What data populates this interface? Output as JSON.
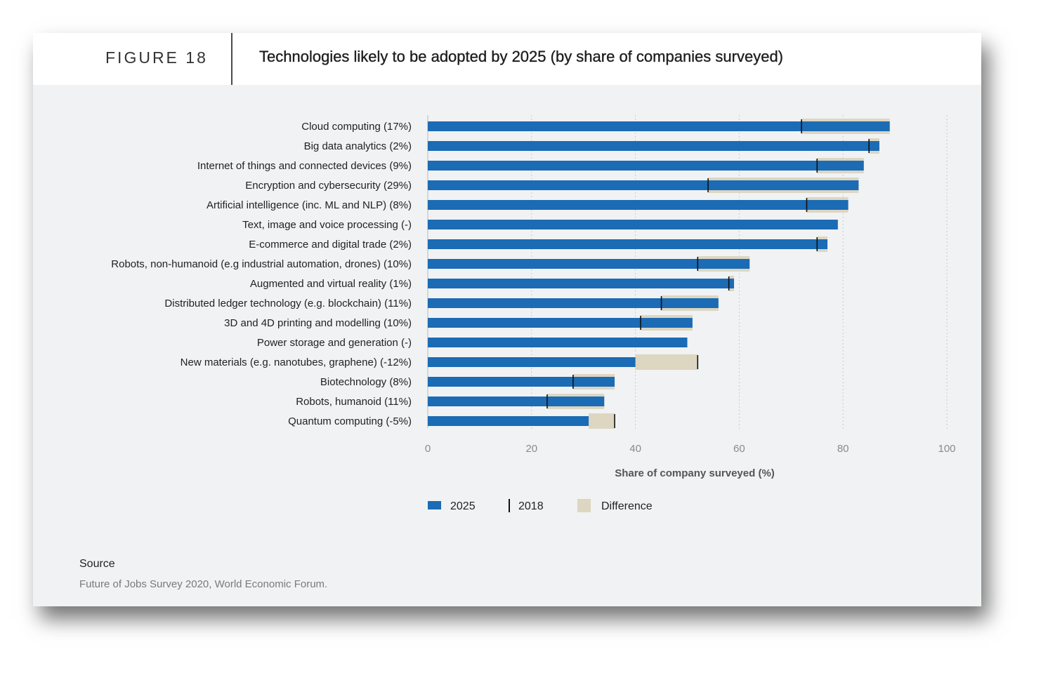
{
  "figure": {
    "label": "FIGURE 18",
    "title": "Technologies likely to be adopted by 2025 (by share of companies surveyed)"
  },
  "source": {
    "label": "Source",
    "text": "Future of Jobs Survey 2020, World Economic Forum."
  },
  "chart_data": {
    "type": "bar",
    "orientation": "horizontal",
    "xlabel": "Share of company surveyed (%)",
    "xlim": [
      0,
      100
    ],
    "xticks": [
      0,
      20,
      40,
      60,
      80,
      100
    ],
    "grid": "vertical dotted",
    "legend_position": "bottom",
    "colors": {
      "2025": "#1b6bb5",
      "2018": "#111111",
      "Difference": "#ddd6c1"
    },
    "categories": [
      "Cloud computing (17%)",
      "Big data analytics (2%)",
      "Internet of things and connected devices (9%)",
      "Encryption and cybersecurity (29%)",
      "Artificial intelligence (inc. ML and NLP) (8%)",
      "Text, image and voice processing (-)",
      "E-commerce and digital trade (2%)",
      "Robots, non-humanoid (e.g industrial automation, drones) (10%)",
      "Augmented and virtual reality (1%)",
      "Distributed ledger technology (e.g. blockchain) (11%)",
      "3D and 4D printing and modelling (10%)",
      "Power storage and generation (-)",
      "New materials (e.g. nanotubes, graphene) (-12%)",
      "Biotechnology (8%)",
      "Robots, humanoid (11%)",
      "Quantum computing (-5%)"
    ],
    "series": [
      {
        "name": "2025",
        "values": [
          89,
          87,
          84,
          83,
          81,
          79,
          77,
          62,
          59,
          56,
          51,
          50,
          40,
          36,
          34,
          31
        ]
      },
      {
        "name": "2018",
        "values": [
          72,
          85,
          75,
          54,
          73,
          null,
          75,
          52,
          58,
          45,
          41,
          null,
          52,
          28,
          23,
          36
        ]
      }
    ],
    "legend": [
      "2025",
      "2018",
      "Difference"
    ]
  }
}
